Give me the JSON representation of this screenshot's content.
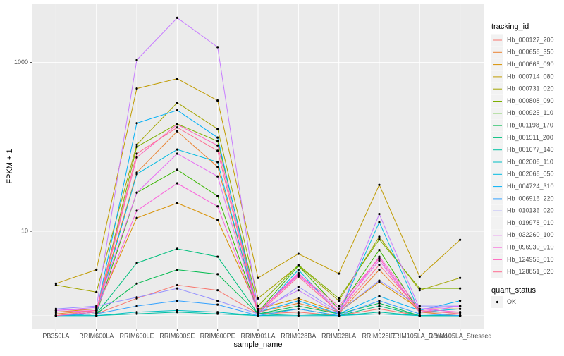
{
  "chart_data": {
    "type": "line",
    "x_label": "sample_name",
    "y_label": "FPKM + 1",
    "categories": [
      "PB350LA",
      "RRIM600LA",
      "RRIM600LE",
      "RRIM600SE",
      "RRIM600PE",
      "RRIM901LA",
      "RRIM928BA",
      "RRIM928LA",
      "RRIM928LE",
      "RRIM105LA_Control",
      "RRIM105LA_Stressed"
    ],
    "ylim": [
      0.69,
      5000
    ],
    "yticks": [
      10,
      1000
    ],
    "minor_yticks": [
      1,
      100
    ],
    "log_y": true,
    "grid": true,
    "legend_title": "tracking_id",
    "point_legend_title": "quant_status",
    "point_legend_label": "OK",
    "point_color": "#000000",
    "series": [
      {
        "name": "Hb_000127_200",
        "color": "#F8766D",
        "values": [
          1.0,
          1.05,
          1.6,
          2.3,
          2.0,
          1.05,
          1.1,
          1.0,
          1.2,
          1.0,
          1.0
        ]
      },
      {
        "name": "Hb_000656_350",
        "color": "#EA8331",
        "values": [
          1.05,
          1.15,
          49.5,
          153,
          58,
          1.1,
          1.4,
          1.05,
          3.5,
          1.1,
          1.0
        ]
      },
      {
        "name": "Hb_000665_090",
        "color": "#D89000",
        "values": [
          1.1,
          1.2,
          14.4,
          21.6,
          13.6,
          1.2,
          1.6,
          1.1,
          2.5,
          1.2,
          1.2
        ]
      },
      {
        "name": "Hb_000714_080",
        "color": "#C09B00",
        "values": [
          2.4,
          3.5,
          491,
          642,
          354,
          2.8,
          5.4,
          3.15,
          35.5,
          2.9,
          7.9
        ]
      },
      {
        "name": "Hb_000731_020",
        "color": "#A3A500",
        "values": [
          2.3,
          1.9,
          106,
          334,
          163,
          1.6,
          3.9,
          1.5,
          8.6,
          2.0,
          2.8
        ]
      },
      {
        "name": "Hb_000808_090",
        "color": "#7CAE00",
        "values": [
          1.0,
          1.1,
          100,
          187,
          117,
          1.3,
          4.0,
          1.6,
          8.0,
          2.1,
          2.1
        ]
      },
      {
        "name": "Hb_000925_110",
        "color": "#39B600",
        "values": [
          1.0,
          1.05,
          28.7,
          53.5,
          26.2,
          1.1,
          3.9,
          1.2,
          6.0,
          1.1,
          1.1
        ]
      },
      {
        "name": "Hb_001198_170",
        "color": "#00BB4E",
        "values": [
          1.0,
          1.05,
          2.4,
          3.5,
          3.1,
          1.05,
          1.3,
          1.05,
          1.4,
          1.0,
          1.0
        ]
      },
      {
        "name": "Hb_001511_200",
        "color": "#00BF7D",
        "values": [
          1.0,
          1.05,
          4.2,
          6.2,
          5.0,
          1.05,
          1.2,
          1.0,
          1.3,
          1.0,
          1.0
        ]
      },
      {
        "name": "Hb_001677_140",
        "color": "#00C1A3",
        "values": [
          1.0,
          1.0,
          1.05,
          1.1,
          1.05,
          1.0,
          1.05,
          1.0,
          1.1,
          1.0,
          1.0
        ]
      },
      {
        "name": "Hb_002006_110",
        "color": "#00BFC4",
        "values": [
          1.0,
          1.0,
          1.1,
          1.15,
          1.1,
          1.0,
          1.0,
          1.0,
          1.05,
          1.0,
          1.0
        ]
      },
      {
        "name": "Hb_002066_050",
        "color": "#00BAE0",
        "values": [
          1.0,
          1.05,
          47.5,
          93,
          66,
          1.05,
          3.5,
          1.05,
          12.8,
          1.1,
          1.2
        ]
      },
      {
        "name": "Hb_004724_310",
        "color": "#00B0F6",
        "values": [
          1.0,
          1.1,
          191,
          271,
          129,
          1.1,
          1.5,
          1.05,
          1.7,
          1.15,
          1.5
        ]
      },
      {
        "name": "Hb_006916_220",
        "color": "#35A2FF",
        "values": [
          1.0,
          1.05,
          1.3,
          1.5,
          1.35,
          1.0,
          1.2,
          1.0,
          1.5,
          1.05,
          1.0
        ]
      },
      {
        "name": "Hb_010136_020",
        "color": "#9590FF",
        "values": [
          1.2,
          1.3,
          1.65,
          2.1,
          1.5,
          1.05,
          2.2,
          1.1,
          2.6,
          1.3,
          1.3
        ]
      },
      {
        "name": "Hb_019978_010",
        "color": "#C77CFF",
        "values": [
          1.15,
          1.25,
          1070,
          3380,
          1520,
          1.15,
          2.0,
          1.05,
          16,
          1.2,
          1.3
        ]
      },
      {
        "name": "Hb_032260_100",
        "color": "#E76BF3",
        "values": [
          1.15,
          1.2,
          28.7,
          83,
          44.7,
          1.1,
          3.0,
          1.2,
          4.5,
          1.1,
          1.3
        ]
      },
      {
        "name": "Hb_096930_010",
        "color": "#FA62DB",
        "values": [
          1.1,
          1.15,
          17.5,
          37,
          19.7,
          1.1,
          3.2,
          1.1,
          5.0,
          1.2,
          1.1
        ]
      },
      {
        "name": "Hb_124953_010",
        "color": "#FF62BC",
        "values": [
          1.0,
          1.1,
          75,
          184,
          104,
          1.1,
          3.1,
          1.3,
          4.8,
          1.1,
          1.1
        ]
      },
      {
        "name": "Hb_128851_020",
        "color": "#FF6C90",
        "values": [
          1.0,
          1.15,
          83,
          170,
          90,
          1.05,
          2.9,
          1.1,
          4.0,
          1.15,
          1.05
        ]
      }
    ]
  }
}
